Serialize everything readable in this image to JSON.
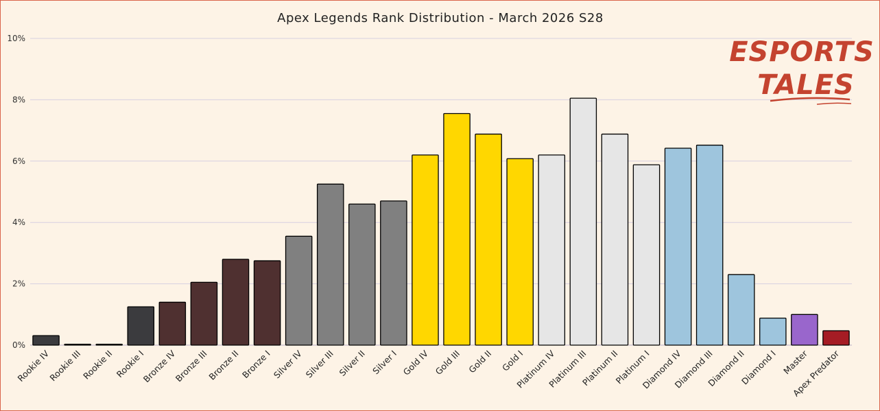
{
  "chart_data": {
    "type": "bar",
    "title": "Apex Legends Rank Distribution - March 2026 S28",
    "xlabel": "",
    "ylabel": "",
    "ylim": [
      0,
      10
    ],
    "yticks": [
      0,
      2,
      4,
      6,
      8,
      10
    ],
    "ytick_labels": [
      "0%",
      "2%",
      "4%",
      "6%",
      "8%",
      "10%"
    ],
    "grid": "horizontal",
    "categories": [
      "Rookie IV",
      "Rookie III",
      "Rookie II",
      "Rookie I",
      "Bronze IV",
      "Bronze III",
      "Bronze II",
      "Bronze I",
      "Silver IV",
      "Silver III",
      "Silver II",
      "Silver I",
      "Gold IV",
      "Gold III",
      "Gold II",
      "Gold I",
      "Platinum IV",
      "Platinum III",
      "Platinum II",
      "Platinum I",
      "Diamond IV",
      "Diamond III",
      "Diamond II",
      "Diamond I",
      "Master",
      "Apex Predator"
    ],
    "values": [
      0.31,
      0.03,
      0.03,
      1.25,
      1.4,
      2.05,
      2.8,
      2.75,
      3.55,
      5.25,
      4.6,
      4.7,
      6.2,
      7.55,
      6.88,
      6.08,
      6.2,
      8.05,
      6.88,
      5.88,
      6.42,
      6.52,
      2.3,
      0.88,
      1.0,
      0.47
    ],
    "colors": [
      "#3b3b3e",
      "#3b3b3e",
      "#3b3b3e",
      "#3b3b3e",
      "#4f3030",
      "#4f3030",
      "#4f3030",
      "#4f3030",
      "#808080",
      "#808080",
      "#808080",
      "#808080",
      "#ffd700",
      "#ffd700",
      "#ffd700",
      "#ffd700",
      "#e6e6e6",
      "#e6e6e6",
      "#e6e6e6",
      "#e6e6e6",
      "#9ec5dd",
      "#9ec5dd",
      "#9ec5dd",
      "#9ec5dd",
      "#9966cc",
      "#a51c24"
    ]
  },
  "logo": {
    "line1": "ESPORTS",
    "line2": "TALES",
    "color": "#c4432f"
  }
}
